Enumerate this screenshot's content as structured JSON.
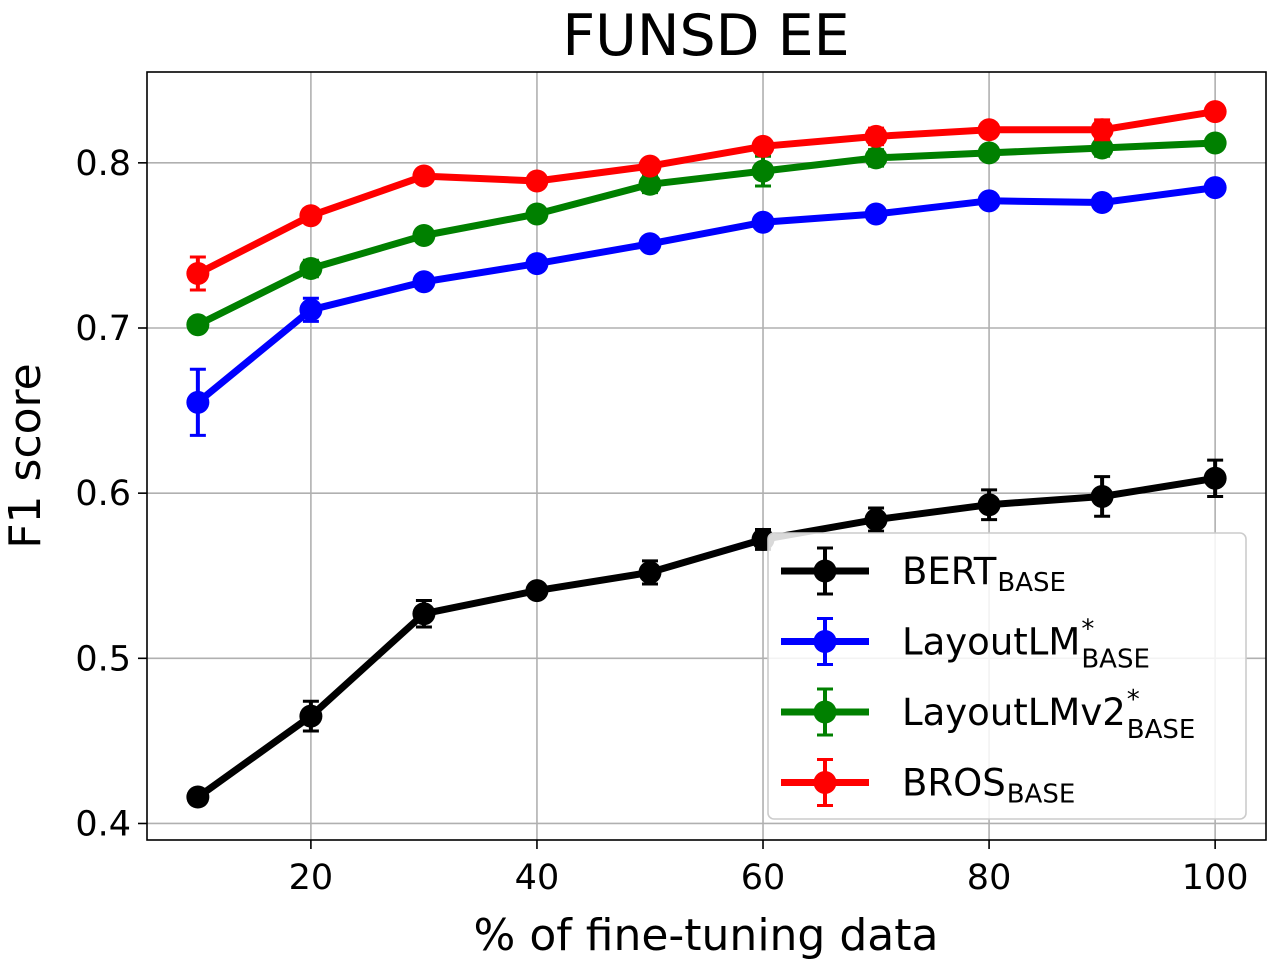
{
  "chart_data": {
    "type": "line",
    "title": "FUNSD EE",
    "xlabel": "% of fine-tuning data",
    "ylabel": "F1 score",
    "x": [
      10,
      20,
      30,
      40,
      50,
      60,
      70,
      80,
      90,
      100
    ],
    "xlim": [
      5.5,
      104.5
    ],
    "ylim": [
      0.39,
      0.855
    ],
    "xticks": [
      20,
      40,
      60,
      80,
      100
    ],
    "yticks": [
      0.4,
      0.5,
      0.6,
      0.7,
      0.8
    ],
    "xtick_labels": [
      "20",
      "40",
      "60",
      "80",
      "100"
    ],
    "ytick_labels": [
      "0.4",
      "0.5",
      "0.6",
      "0.7",
      "0.8"
    ],
    "grid": true,
    "legend_position": "lower-right",
    "error_bars": true,
    "series": [
      {
        "name": "BERT",
        "name_sub": "BASE",
        "name_sup": "",
        "color": "#000000",
        "values": [
          0.416,
          0.465,
          0.527,
          0.541,
          0.552,
          0.572,
          0.584,
          0.593,
          0.598,
          0.609
        ],
        "errors": [
          0.003,
          0.009,
          0.008,
          0.004,
          0.007,
          0.006,
          0.007,
          0.009,
          0.012,
          0.011
        ]
      },
      {
        "name": "LayoutLM",
        "name_sub": "BASE",
        "name_sup": "*",
        "color": "#0000ff",
        "values": [
          0.655,
          0.711,
          0.728,
          0.739,
          0.751,
          0.764,
          0.769,
          0.777,
          0.776,
          0.785
        ],
        "errors": [
          0.02,
          0.007,
          0.004,
          0.004,
          0.003,
          0.004,
          0.003,
          0.003,
          0.003,
          0.003
        ]
      },
      {
        "name": "LayoutLMv2",
        "name_sub": "BASE",
        "name_sup": "*",
        "color": "#008000",
        "values": [
          0.702,
          0.736,
          0.756,
          0.769,
          0.787,
          0.795,
          0.803,
          0.806,
          0.809,
          0.812
        ],
        "errors": [
          0.004,
          0.005,
          0.004,
          0.004,
          0.005,
          0.009,
          0.005,
          0.004,
          0.005,
          0.004
        ]
      },
      {
        "name": "BROS",
        "name_sub": "BASE",
        "name_sup": "",
        "color": "#ff0000",
        "values": [
          0.733,
          0.768,
          0.792,
          0.789,
          0.798,
          0.81,
          0.816,
          0.82,
          0.82,
          0.831
        ],
        "errors": [
          0.01,
          0.004,
          0.004,
          0.004,
          0.004,
          0.003,
          0.005,
          0.004,
          0.006,
          0.004
        ]
      }
    ]
  }
}
